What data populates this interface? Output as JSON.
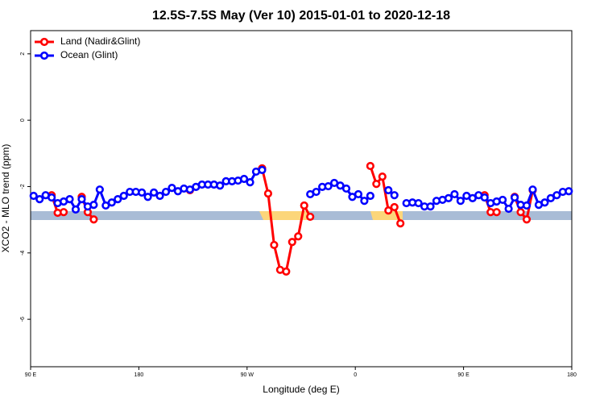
{
  "chart_data": {
    "type": "line",
    "title": "12.5S-7.5S May (Ver 10)   2015-01-01 to 2020-12-18",
    "x_label": "Longitude (deg E)",
    "y_label": "XCO2 - MLO trend (ppm)",
    "legend": "top-left",
    "x": [
      92.5,
      97.5,
      102.5,
      107.5,
      112.5,
      117.5,
      122.5,
      127.5,
      132.5,
      137.5,
      142.5,
      147.5,
      152.5,
      157.5,
      162.5,
      167.5,
      172.5,
      177.5,
      182.5,
      187.5,
      192.5,
      197.5,
      202.5,
      207.5,
      212.5,
      217.5,
      222.5,
      227.5,
      232.5,
      237.5,
      242.5,
      247.5,
      252.5,
      257.5,
      262.5,
      267.5,
      272.5,
      277.5,
      282.5,
      287.5,
      292.5,
      297.5,
      302.5,
      307.5,
      312.5,
      317.5,
      322.5,
      327.5,
      332.5,
      337.5,
      342.5,
      347.5,
      352.5,
      357.5,
      362.5,
      367.5,
      372.5,
      377.5,
      382.5,
      387.5,
      392.5,
      397.5,
      402.5,
      407.5,
      412.5,
      417.5,
      422.5,
      427.5,
      432.5,
      437.5,
      442.5,
      447.5,
      452.5,
      457.5,
      462.5,
      467.5,
      472.5,
      477.5,
      482.5,
      487.5,
      492.5,
      497.5,
      502.5,
      507.5,
      512.5,
      517.5,
      522.5,
      527.5,
      532.5,
      537.5
    ],
    "series": [
      {
        "name": "Land (Nadir&Glint)",
        "color": "#ff0000",
        "values": [
          null,
          null,
          null,
          -2.26,
          -2.79,
          -2.77,
          null,
          null,
          -2.31,
          -2.77,
          -2.99,
          null,
          null,
          null,
          null,
          null,
          null,
          null,
          null,
          null,
          null,
          null,
          null,
          null,
          null,
          null,
          -2.11,
          null,
          null,
          null,
          null,
          null,
          null,
          null,
          null,
          null,
          null,
          null,
          -1.45,
          -2.21,
          -3.76,
          -4.51,
          -4.56,
          -3.67,
          -3.5,
          -2.57,
          -2.91,
          null,
          null,
          null,
          null,
          null,
          null,
          null,
          null,
          null,
          -1.38,
          -1.92,
          -1.7,
          -2.72,
          -2.62,
          -3.11,
          null,
          null,
          null,
          null,
          null,
          null,
          null,
          null,
          null,
          null,
          null,
          null,
          null,
          -2.26,
          -2.77,
          -2.77,
          null,
          null,
          -2.31,
          -2.77,
          -2.99,
          -2.11,
          null,
          null,
          null,
          null,
          null,
          null
        ]
      },
      {
        "name": "Ocean (Glint)",
        "color": "#0000ff",
        "values": [
          -2.28,
          -2.38,
          -2.26,
          -2.33,
          -2.5,
          -2.45,
          -2.38,
          -2.69,
          -2.38,
          -2.6,
          -2.55,
          -2.09,
          -2.57,
          -2.48,
          -2.38,
          -2.28,
          -2.16,
          -2.16,
          -2.18,
          -2.31,
          -2.18,
          -2.28,
          -2.16,
          -2.04,
          -2.14,
          -2.06,
          -2.09,
          -2.01,
          -1.94,
          -1.94,
          -1.94,
          -1.97,
          -1.84,
          -1.84,
          -1.82,
          -1.77,
          -1.87,
          -1.55,
          -1.5,
          null,
          null,
          null,
          null,
          null,
          null,
          null,
          -2.23,
          -2.16,
          -2.01,
          -1.99,
          -1.89,
          -1.97,
          -2.06,
          -2.31,
          -2.23,
          -2.43,
          -2.28,
          null,
          null,
          -2.11,
          -2.26,
          null,
          -2.5,
          -2.48,
          -2.5,
          -2.6,
          -2.6,
          -2.43,
          -2.4,
          -2.35,
          -2.23,
          -2.43,
          -2.28,
          -2.35,
          -2.26,
          -2.33,
          -2.5,
          -2.45,
          -2.4,
          -2.67,
          -2.33,
          -2.55,
          -2.57,
          -2.09,
          -2.55,
          -2.48,
          -2.35,
          -2.26,
          -2.16,
          -2.14
        ]
      }
    ],
    "xlim": [
      90,
      540
    ],
    "xticks": [
      {
        "value": 90,
        "label": "90 E"
      },
      180,
      {
        "value": 270,
        "label": "90 W"
      },
      {
        "value": 360,
        "label": "0"
      },
      {
        "value": 450,
        "label": "90 E"
      },
      {
        "value": 540,
        "label": "180"
      }
    ],
    "ylim": [
      -7.43,
      2.7
    ],
    "yticks": [
      -6,
      -4,
      -2,
      0,
      2
    ]
  }
}
